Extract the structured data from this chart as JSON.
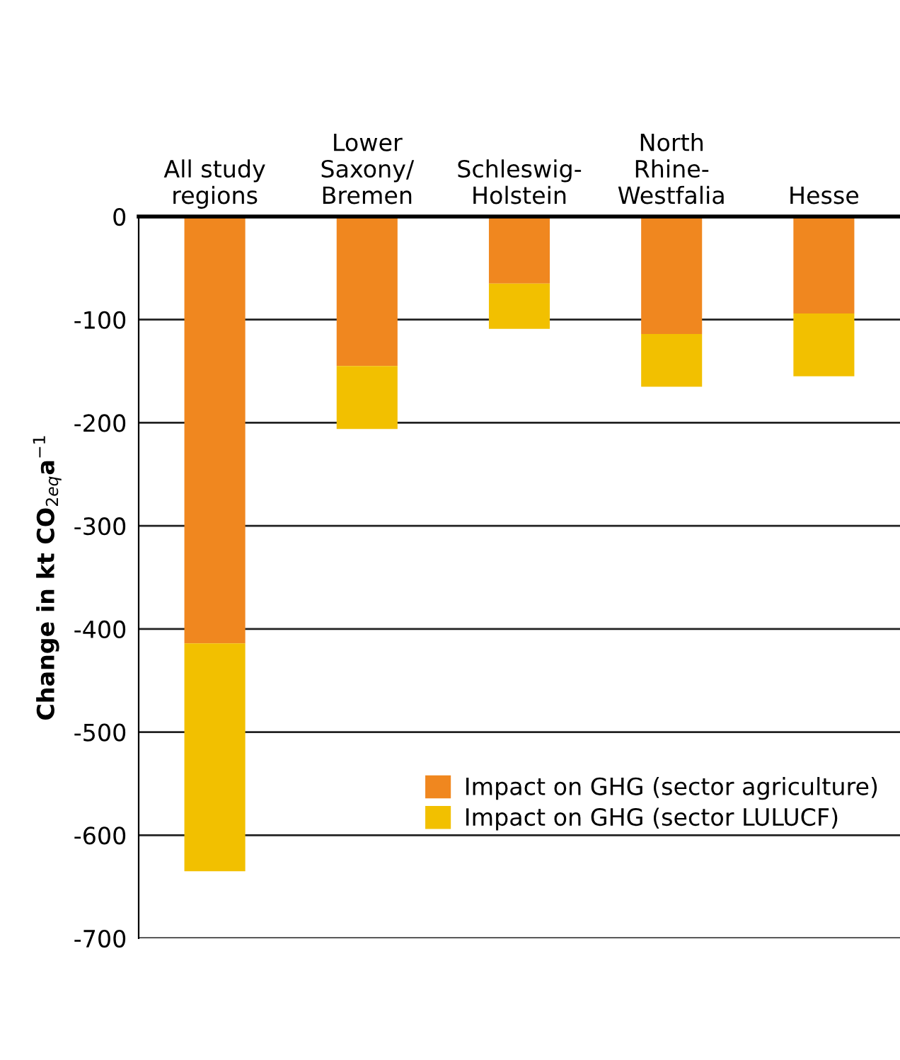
{
  "chart_data": {
    "type": "bar",
    "stacked": true,
    "ylabel": "Change in kt CO$_{2eq}$a$^{−1}$",
    "categories": [
      "All study\nregions",
      "Lower\nSaxony/\nBremen",
      "Schleswig-\nHolstein",
      "North\nRhine-\nWestfalia",
      "Hesse"
    ],
    "series": [
      {
        "name": "Impact on GHG (sector agriculture)",
        "color": "#f0871f",
        "values": [
          -414,
          -145,
          -65,
          -114,
          -94
        ]
      },
      {
        "name": "Impact on GHG (sector LULUCF)",
        "color": "#f2c000",
        "values": [
          -221,
          -61,
          -44,
          -51,
          -61
        ]
      }
    ],
    "ylim": [
      -700,
      0
    ],
    "yticks": [
      -700,
      -600,
      -500,
      -400,
      -300,
      -200,
      -100,
      0
    ],
    "grid": "y",
    "legend": "lower right"
  }
}
